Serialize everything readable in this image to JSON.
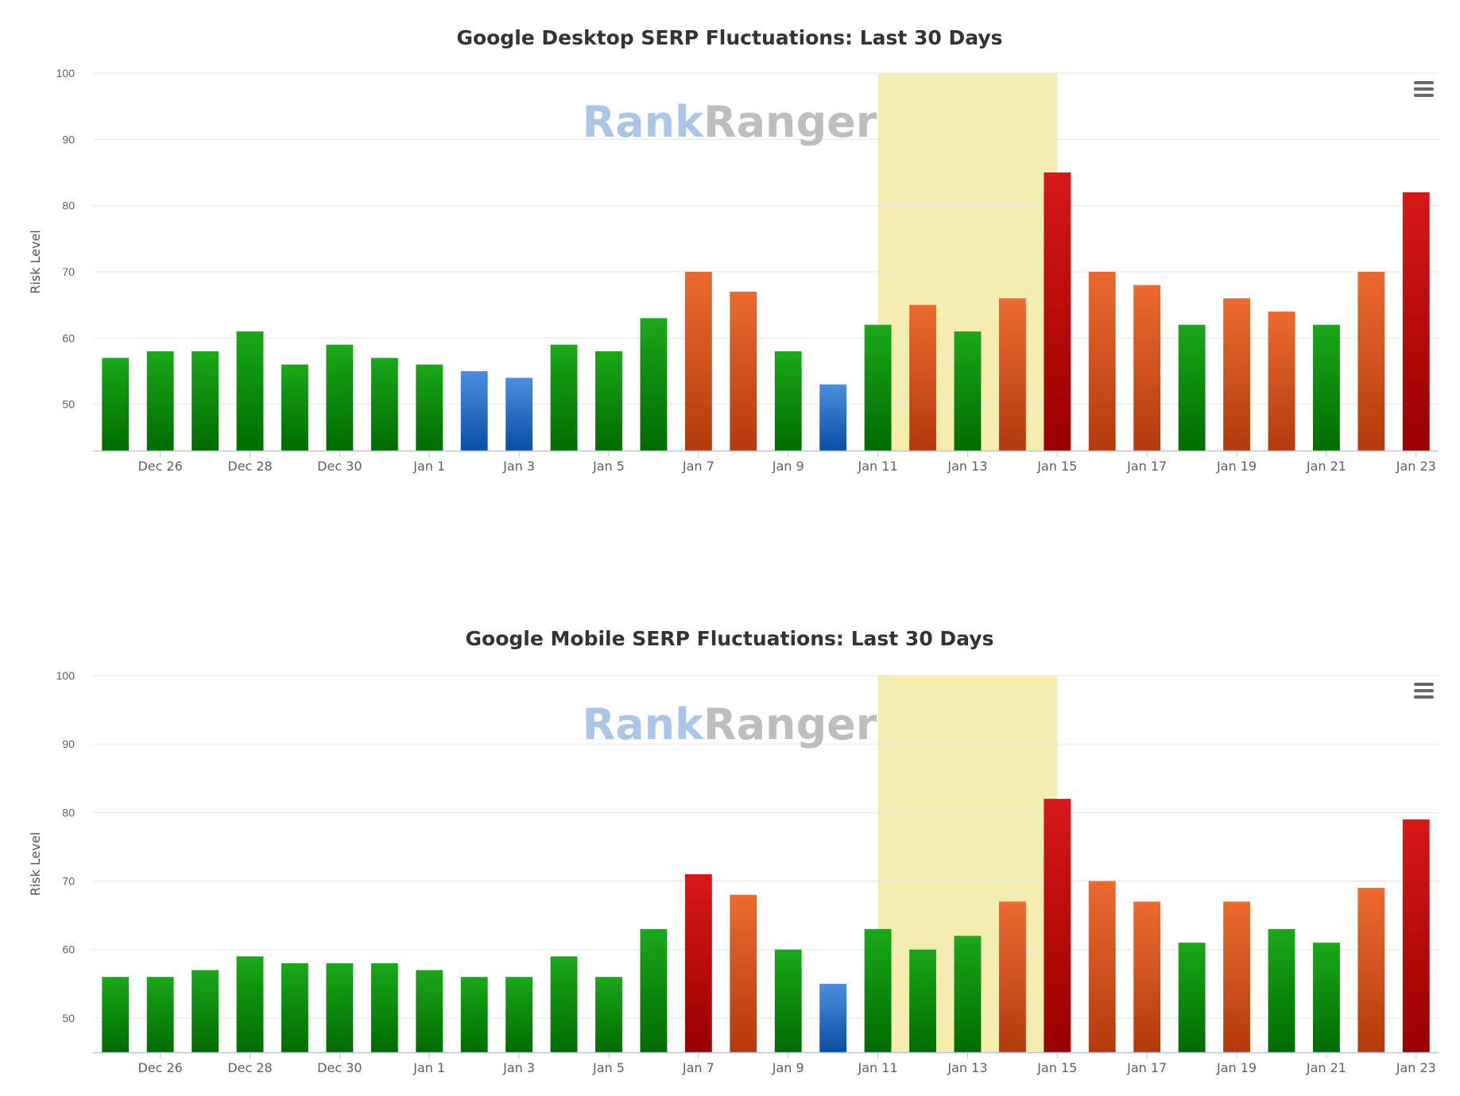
{
  "watermark": {
    "part1": "Rank",
    "part2": "Ranger"
  },
  "colors": {
    "green_top": "#1aa81a",
    "green_bottom": "#006b00",
    "blue_top": "#4a8ee0",
    "blue_bottom": "#0a4fa6",
    "orange_top": "#ec6a30",
    "orange_bottom": "#b33a0e",
    "red_top": "#d81818",
    "red_bottom": "#980000",
    "highlight_band": "#f5ecb0",
    "menu_icon": "#666666"
  },
  "chart_data": [
    {
      "id": "desktop",
      "type": "bar",
      "title": "Google Desktop SERP Fluctuations: Last 30 Days",
      "ylabel": "Risk Level",
      "ylim": [
        43,
        100
      ],
      "yticks": [
        50,
        60,
        70,
        80,
        90,
        100
      ],
      "grid": true,
      "menu_icon": "hamburger-menu-icon",
      "highlight_range": [
        "Jan 11",
        "Jan 14"
      ],
      "categories": [
        "Dec 25",
        "Dec 26",
        "Dec 27",
        "Dec 28",
        "Dec 29",
        "Dec 30",
        "Dec 31",
        "Jan 1",
        "Jan 2",
        "Jan 3",
        "Jan 4",
        "Jan 5",
        "Jan 6",
        "Jan 7",
        "Jan 8",
        "Jan 9",
        "Jan 10",
        "Jan 11",
        "Jan 12",
        "Jan 13",
        "Jan 14",
        "Jan 15",
        "Jan 16",
        "Jan 17",
        "Jan 18",
        "Jan 19",
        "Jan 20",
        "Jan 21",
        "Jan 22",
        "Jan 23"
      ],
      "xtick_labels": [
        "Dec 26",
        "Dec 28",
        "Dec 30",
        "Jan 1",
        "Jan 3",
        "Jan 5",
        "Jan 7",
        "Jan 9",
        "Jan 11",
        "Jan 13",
        "Jan 15",
        "Jan 17",
        "Jan 19",
        "Jan 21",
        "Jan 23"
      ],
      "values": [
        57,
        58,
        58,
        61,
        56,
        59,
        57,
        56,
        55,
        54,
        59,
        58,
        63,
        70,
        67,
        58,
        53,
        62,
        65,
        61,
        66,
        85,
        70,
        68,
        62,
        66,
        64,
        62,
        70,
        82
      ],
      "bar_colors": [
        "green",
        "green",
        "green",
        "green",
        "green",
        "green",
        "green",
        "green",
        "blue",
        "blue",
        "green",
        "green",
        "green",
        "orange",
        "orange",
        "green",
        "blue",
        "green",
        "orange",
        "green",
        "orange",
        "red",
        "orange",
        "orange",
        "green",
        "orange",
        "orange",
        "green",
        "orange",
        "red"
      ]
    },
    {
      "id": "mobile",
      "type": "bar",
      "title": "Google Mobile SERP Fluctuations: Last 30 Days",
      "ylabel": "Risk Level",
      "ylim": [
        45,
        100
      ],
      "yticks": [
        50,
        60,
        70,
        80,
        90,
        100
      ],
      "grid": true,
      "menu_icon": "hamburger-menu-icon",
      "highlight_range": [
        "Jan 11",
        "Jan 14"
      ],
      "categories": [
        "Dec 25",
        "Dec 26",
        "Dec 27",
        "Dec 28",
        "Dec 29",
        "Dec 30",
        "Dec 31",
        "Jan 1",
        "Jan 2",
        "Jan 3",
        "Jan 4",
        "Jan 5",
        "Jan 6",
        "Jan 7",
        "Jan 8",
        "Jan 9",
        "Jan 10",
        "Jan 11",
        "Jan 12",
        "Jan 13",
        "Jan 14",
        "Jan 15",
        "Jan 16",
        "Jan 17",
        "Jan 18",
        "Jan 19",
        "Jan 20",
        "Jan 21",
        "Jan 22",
        "Jan 23"
      ],
      "xtick_labels": [
        "Dec 26",
        "Dec 28",
        "Dec 30",
        "Jan 1",
        "Jan 3",
        "Jan 5",
        "Jan 7",
        "Jan 9",
        "Jan 11",
        "Jan 13",
        "Jan 15",
        "Jan 17",
        "Jan 19",
        "Jan 21",
        "Jan 23"
      ],
      "values": [
        56,
        56,
        57,
        59,
        58,
        58,
        58,
        57,
        56,
        56,
        59,
        56,
        63,
        71,
        68,
        60,
        55,
        63,
        60,
        62,
        67,
        82,
        70,
        67,
        61,
        67,
        63,
        61,
        69,
        79
      ],
      "bar_colors": [
        "green",
        "green",
        "green",
        "green",
        "green",
        "green",
        "green",
        "green",
        "green",
        "green",
        "green",
        "green",
        "green",
        "red",
        "orange",
        "green",
        "blue",
        "green",
        "green",
        "green",
        "orange",
        "red",
        "orange",
        "orange",
        "green",
        "orange",
        "green",
        "green",
        "orange",
        "red"
      ]
    }
  ]
}
